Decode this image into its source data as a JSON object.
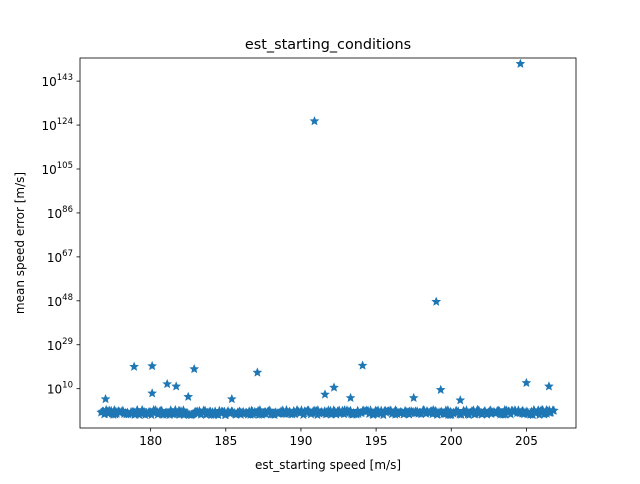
{
  "chart_data": {
    "type": "scatter",
    "title": "est_starting_conditions",
    "xlabel": "est_starting speed  [m/s]",
    "ylabel": "mean speed error [m/s]",
    "yscale": "log",
    "xlim": [
      175.3,
      208.3
    ],
    "ylim_log10": [
      -7,
      153
    ],
    "grid": false,
    "marker": "star",
    "marker_color": "#1f77b4",
    "x_ticks": [
      180,
      185,
      190,
      195,
      200,
      205
    ],
    "x_tick_labels": [
      "180",
      "185",
      "190",
      "195",
      "200",
      "205"
    ],
    "y_ticks_log10": [
      10,
      29,
      48,
      67,
      86,
      105,
      124,
      143
    ],
    "y_tick_labels": [
      {
        "base": "10",
        "exp": "10"
      },
      {
        "base": "10",
        "exp": "29"
      },
      {
        "base": "10",
        "exp": "48"
      },
      {
        "base": "10",
        "exp": "67"
      },
      {
        "base": "10",
        "exp": "86"
      },
      {
        "base": "10",
        "exp": "105"
      },
      {
        "base": "10",
        "exp": "124"
      },
      {
        "base": "10",
        "exp": "143"
      }
    ],
    "series": [
      {
        "points": [
          {
            "x": 204.6,
            "y_log10": 150.5
          },
          {
            "x": 190.9,
            "y_log10": 125.7
          },
          {
            "x": 199.0,
            "y_log10": 47.6
          },
          {
            "x": 178.9,
            "y_log10": 19.5
          },
          {
            "x": 180.1,
            "y_log10": 19.8
          },
          {
            "x": 182.9,
            "y_log10": 18.5
          },
          {
            "x": 187.1,
            "y_log10": 17.0
          },
          {
            "x": 194.1,
            "y_log10": 20.0
          },
          {
            "x": 181.1,
            "y_log10": 12.0
          },
          {
            "x": 181.7,
            "y_log10": 11.0
          },
          {
            "x": 192.2,
            "y_log10": 10.5
          },
          {
            "x": 205.0,
            "y_log10": 12.5
          },
          {
            "x": 206.5,
            "y_log10": 11.0
          },
          {
            "x": 199.3,
            "y_log10": 9.5
          },
          {
            "x": 180.1,
            "y_log10": 8.0
          },
          {
            "x": 182.5,
            "y_log10": 6.5
          },
          {
            "x": 191.6,
            "y_log10": 7.5
          },
          {
            "x": 193.3,
            "y_log10": 6.0
          },
          {
            "x": 197.5,
            "y_log10": 6.0
          },
          {
            "x": 185.4,
            "y_log10": 5.5
          },
          {
            "x": 200.6,
            "y_log10": 5.0
          },
          {
            "x": 177.0,
            "y_log10": 5.5
          }
        ]
      }
    ]
  }
}
